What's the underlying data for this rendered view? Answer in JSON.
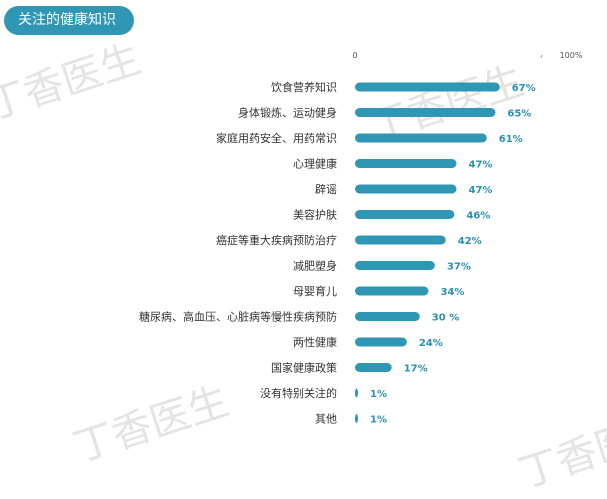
{
  "header": {
    "title": "关注的健康知识"
  },
  "watermark": {
    "text": "丁香医生"
  },
  "colors": {
    "bar": "#2f97b4",
    "accent": "#2f97b4",
    "value_text": "#2a90b0"
  },
  "chart_data": {
    "type": "bar",
    "orientation": "horizontal",
    "title": "关注的健康知识",
    "xlim": [
      0,
      100
    ],
    "x_ticks": [
      {
        "value": 0,
        "label": "0"
      },
      {
        "value": 100,
        "label": "100%"
      }
    ],
    "categories": [
      "饮食营养知识",
      "身体锻炼、运动健身",
      "家庭用药安全、用药常识",
      "心理健康",
      "辟谣",
      "美容护肤",
      "癌症等重大疾病预防治疗",
      "减肥塑身",
      "母婴育儿",
      "糖尿病、高血压、心脏病等慢性疾病预防",
      "两性健康",
      "国家健康政策",
      "没有特别关注的",
      "其他"
    ],
    "values": [
      67,
      65,
      61,
      47,
      47,
      46,
      42,
      37,
      34,
      30,
      24,
      17,
      1,
      1
    ],
    "value_labels": [
      "67%",
      "65%",
      "61%",
      "47%",
      "47%",
      "46%",
      "42%",
      "37%",
      "34%",
      "30 %",
      "24%",
      "17%",
      "1%",
      "1%"
    ],
    "grid": false,
    "legend": "none"
  }
}
